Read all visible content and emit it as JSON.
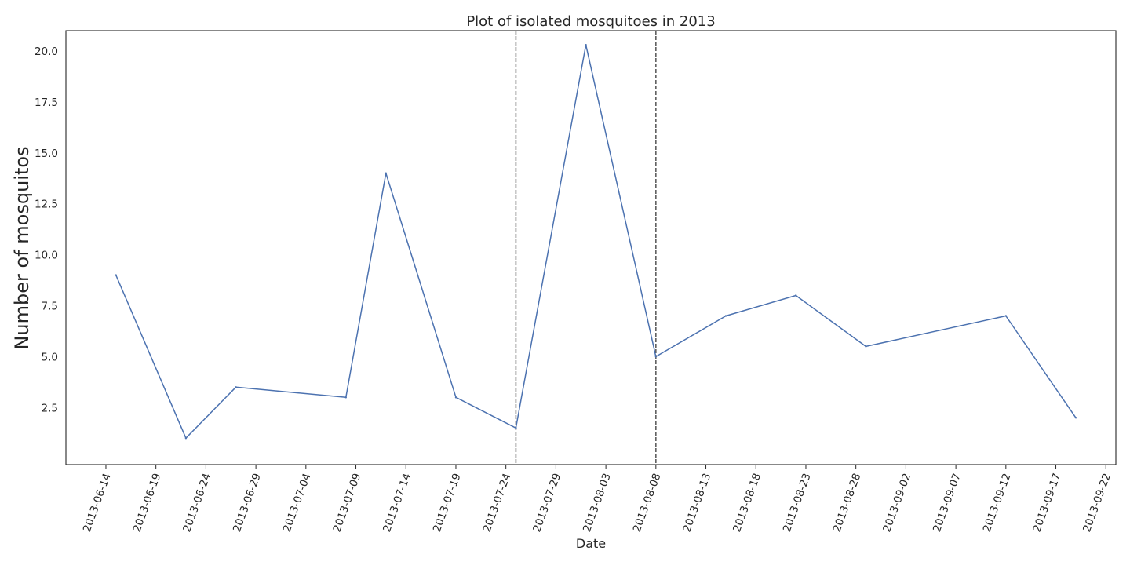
{
  "chart_data": {
    "type": "line",
    "title": "Plot of isolated mosquitoes in 2013",
    "xlabel": "Date",
    "ylabel": "Number of mosquitos",
    "xlim": [
      "2013-06-10",
      "2013-09-23"
    ],
    "ylim": [
      -0.3,
      21.0
    ],
    "grid": false,
    "x_ticks": [
      "2013-06-14",
      "2013-06-19",
      "2013-06-24",
      "2013-06-29",
      "2013-07-04",
      "2013-07-09",
      "2013-07-14",
      "2013-07-19",
      "2013-07-24",
      "2013-07-29",
      "2013-08-03",
      "2013-08-08",
      "2013-08-13",
      "2013-08-18",
      "2013-08-23",
      "2013-08-28",
      "2013-09-02",
      "2013-09-07",
      "2013-09-12",
      "2013-09-17",
      "2013-09-22"
    ],
    "y_ticks": [
      "2.5",
      "5.0",
      "7.5",
      "10.0",
      "12.5",
      "15.0",
      "17.5",
      "20.0"
    ],
    "color": "#4c72b0",
    "series": [
      {
        "x": [
          "2013-06-15",
          "2013-06-22",
          "2013-06-27",
          "2013-07-08",
          "2013-07-12",
          "2013-07-19",
          "2013-07-25",
          "2013-08-01",
          "2013-08-08",
          "2013-08-15",
          "2013-08-22",
          "2013-08-29",
          "2013-09-12",
          "2013-09-19"
        ],
        "y": [
          9,
          1,
          3.5,
          3,
          14,
          3,
          1.5,
          20.3,
          5,
          7,
          8,
          5.5,
          7,
          2
        ]
      }
    ],
    "vlines": [
      {
        "x": "2013-07-25",
        "style": "dashed"
      },
      {
        "x": "2013-08-08",
        "style": "dashed"
      }
    ]
  }
}
